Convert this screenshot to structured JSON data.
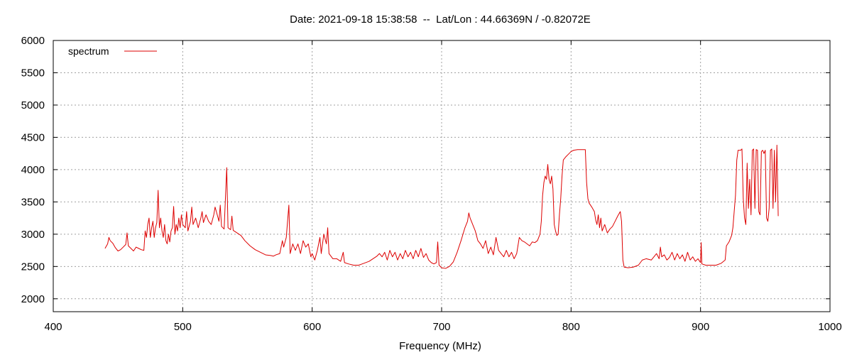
{
  "chart_data": {
    "type": "line",
    "title": "Date: 2021-09-18 15:38:58  --  Lat/Lon : 44.66369N / -0.82072E",
    "xlabel": "Frequency (MHz)",
    "ylabel": "",
    "xlim": [
      400,
      1000
    ],
    "ylim": [
      1800,
      6000
    ],
    "x_ticks": [
      400,
      500,
      600,
      700,
      800,
      900,
      1000
    ],
    "y_ticks": [
      2000,
      2500,
      3000,
      3500,
      4000,
      4500,
      5000,
      5500,
      6000
    ],
    "grid": true,
    "legend_position": "top-left",
    "colors": {
      "series": "#dd0000",
      "grid": "#a0a0a0",
      "axis": "#000000"
    },
    "series": [
      {
        "name": "spectrum",
        "points": [
          [
            440,
            2780
          ],
          [
            442,
            2850
          ],
          [
            443,
            2950
          ],
          [
            444,
            2900
          ],
          [
            446,
            2860
          ],
          [
            448,
            2790
          ],
          [
            450,
            2740
          ],
          [
            452,
            2760
          ],
          [
            454,
            2800
          ],
          [
            456,
            2840
          ],
          [
            457,
            3020
          ],
          [
            458,
            2820
          ],
          [
            460,
            2780
          ],
          [
            462,
            2740
          ],
          [
            464,
            2800
          ],
          [
            466,
            2780
          ],
          [
            468,
            2760
          ],
          [
            470,
            2750
          ],
          [
            471,
            3050
          ],
          [
            472,
            2950
          ],
          [
            473,
            3150
          ],
          [
            474,
            3250
          ],
          [
            475,
            2950
          ],
          [
            476,
            3100
          ],
          [
            477,
            3200
          ],
          [
            478,
            2950
          ],
          [
            479,
            3100
          ],
          [
            480,
            3180
          ],
          [
            481,
            3680
          ],
          [
            482,
            3100
          ],
          [
            483,
            3250
          ],
          [
            484,
            3050
          ],
          [
            485,
            2950
          ],
          [
            486,
            3150
          ],
          [
            487,
            2900
          ],
          [
            488,
            2850
          ],
          [
            489,
            3000
          ],
          [
            490,
            2880
          ],
          [
            491,
            3050
          ],
          [
            492,
            3100
          ],
          [
            493,
            3430
          ],
          [
            494,
            3000
          ],
          [
            495,
            3150
          ],
          [
            496,
            3050
          ],
          [
            497,
            3250
          ],
          [
            498,
            3100
          ],
          [
            499,
            3300
          ],
          [
            500,
            3150
          ],
          [
            502,
            3100
          ],
          [
            503,
            3350
          ],
          [
            504,
            3050
          ],
          [
            506,
            3200
          ],
          [
            507,
            3420
          ],
          [
            508,
            3150
          ],
          [
            510,
            3250
          ],
          [
            512,
            3100
          ],
          [
            514,
            3250
          ],
          [
            515,
            3350
          ],
          [
            516,
            3180
          ],
          [
            518,
            3300
          ],
          [
            520,
            3200
          ],
          [
            522,
            3150
          ],
          [
            524,
            3300
          ],
          [
            525,
            3420
          ],
          [
            526,
            3350
          ],
          [
            528,
            3200
          ],
          [
            529,
            3450
          ],
          [
            530,
            3120
          ],
          [
            532,
            3080
          ],
          [
            534,
            4030
          ],
          [
            535,
            3100
          ],
          [
            537,
            3070
          ],
          [
            538,
            3280
          ],
          [
            539,
            3060
          ],
          [
            542,
            3020
          ],
          [
            545,
            2980
          ],
          [
            548,
            2900
          ],
          [
            552,
            2820
          ],
          [
            556,
            2760
          ],
          [
            560,
            2720
          ],
          [
            564,
            2680
          ],
          [
            568,
            2670
          ],
          [
            570,
            2660
          ],
          [
            572,
            2680
          ],
          [
            575,
            2700
          ],
          [
            577,
            2900
          ],
          [
            578,
            2800
          ],
          [
            580,
            2950
          ],
          [
            582,
            3450
          ],
          [
            583,
            2700
          ],
          [
            585,
            2850
          ],
          [
            587,
            2750
          ],
          [
            589,
            2850
          ],
          [
            591,
            2700
          ],
          [
            593,
            2900
          ],
          [
            595,
            2800
          ],
          [
            597,
            2850
          ],
          [
            599,
            2650
          ],
          [
            600,
            2700
          ],
          [
            602,
            2600
          ],
          [
            604,
            2750
          ],
          [
            606,
            2950
          ],
          [
            607,
            2700
          ],
          [
            609,
            3000
          ],
          [
            611,
            2850
          ],
          [
            612,
            3100
          ],
          [
            613,
            2700
          ],
          [
            616,
            2620
          ],
          [
            619,
            2620
          ],
          [
            622,
            2580
          ],
          [
            624,
            2720
          ],
          [
            625,
            2560
          ],
          [
            628,
            2540
          ],
          [
            632,
            2520
          ],
          [
            636,
            2520
          ],
          [
            640,
            2550
          ],
          [
            644,
            2580
          ],
          [
            647,
            2620
          ],
          [
            650,
            2660
          ],
          [
            652,
            2700
          ],
          [
            654,
            2650
          ],
          [
            656,
            2720
          ],
          [
            658,
            2600
          ],
          [
            660,
            2750
          ],
          [
            662,
            2650
          ],
          [
            664,
            2720
          ],
          [
            666,
            2600
          ],
          [
            668,
            2700
          ],
          [
            670,
            2620
          ],
          [
            672,
            2750
          ],
          [
            674,
            2650
          ],
          [
            676,
            2720
          ],
          [
            678,
            2620
          ],
          [
            680,
            2750
          ],
          [
            682,
            2650
          ],
          [
            684,
            2780
          ],
          [
            686,
            2640
          ],
          [
            688,
            2700
          ],
          [
            690,
            2600
          ],
          [
            692,
            2560
          ],
          [
            694,
            2540
          ],
          [
            696,
            2560
          ],
          [
            697,
            2880
          ],
          [
            698,
            2520
          ],
          [
            700,
            2480
          ],
          [
            703,
            2470
          ],
          [
            706,
            2500
          ],
          [
            709,
            2570
          ],
          [
            712,
            2720
          ],
          [
            715,
            2900
          ],
          [
            718,
            3100
          ],
          [
            720,
            3200
          ],
          [
            721,
            3330
          ],
          [
            722,
            3250
          ],
          [
            724,
            3150
          ],
          [
            726,
            3050
          ],
          [
            728,
            2900
          ],
          [
            730,
            2850
          ],
          [
            732,
            2780
          ],
          [
            734,
            2900
          ],
          [
            736,
            2700
          ],
          [
            738,
            2800
          ],
          [
            740,
            2680
          ],
          [
            742,
            2950
          ],
          [
            744,
            2750
          ],
          [
            746,
            2700
          ],
          [
            748,
            2650
          ],
          [
            750,
            2750
          ],
          [
            752,
            2650
          ],
          [
            754,
            2720
          ],
          [
            756,
            2620
          ],
          [
            758,
            2700
          ],
          [
            760,
            2950
          ],
          [
            762,
            2900
          ],
          [
            764,
            2880
          ],
          [
            766,
            2850
          ],
          [
            768,
            2820
          ],
          [
            770,
            2880
          ],
          [
            772,
            2870
          ],
          [
            774,
            2900
          ],
          [
            775,
            2950
          ],
          [
            776,
            3000
          ],
          [
            777,
            3200
          ],
          [
            778,
            3600
          ],
          [
            779,
            3800
          ],
          [
            780,
            3900
          ],
          [
            781,
            3850
          ],
          [
            782,
            4080
          ],
          [
            783,
            3850
          ],
          [
            784,
            3780
          ],
          [
            785,
            3900
          ],
          [
            786,
            3700
          ],
          [
            787,
            3150
          ],
          [
            788,
            3050
          ],
          [
            789,
            2980
          ],
          [
            790,
            3000
          ],
          [
            791,
            3300
          ],
          [
            792,
            3550
          ],
          [
            793,
            3900
          ],
          [
            794,
            4150
          ],
          [
            796,
            4200
          ],
          [
            798,
            4240
          ],
          [
            800,
            4280
          ],
          [
            802,
            4300
          ],
          [
            805,
            4310
          ],
          [
            808,
            4310
          ],
          [
            811,
            4310
          ],
          [
            812,
            3800
          ],
          [
            813,
            3550
          ],
          [
            814,
            3480
          ],
          [
            816,
            3420
          ],
          [
            818,
            3350
          ],
          [
            819,
            3220
          ],
          [
            820,
            3150
          ],
          [
            821,
            3300
          ],
          [
            822,
            3100
          ],
          [
            823,
            3250
          ],
          [
            824,
            3050
          ],
          [
            826,
            3150
          ],
          [
            828,
            3020
          ],
          [
            830,
            3080
          ],
          [
            832,
            3120
          ],
          [
            834,
            3200
          ],
          [
            836,
            3280
          ],
          [
            838,
            3350
          ],
          [
            839,
            3200
          ],
          [
            840,
            2600
          ],
          [
            841,
            2490
          ],
          [
            844,
            2480
          ],
          [
            848,
            2490
          ],
          [
            852,
            2520
          ],
          [
            855,
            2600
          ],
          [
            858,
            2620
          ],
          [
            862,
            2600
          ],
          [
            864,
            2650
          ],
          [
            866,
            2700
          ],
          [
            868,
            2620
          ],
          [
            869,
            2800
          ],
          [
            870,
            2650
          ],
          [
            872,
            2680
          ],
          [
            874,
            2600
          ],
          [
            876,
            2640
          ],
          [
            878,
            2720
          ],
          [
            880,
            2600
          ],
          [
            882,
            2700
          ],
          [
            884,
            2620
          ],
          [
            886,
            2680
          ],
          [
            888,
            2580
          ],
          [
            890,
            2720
          ],
          [
            892,
            2600
          ],
          [
            894,
            2650
          ],
          [
            896,
            2580
          ],
          [
            898,
            2620
          ],
          [
            900,
            2560
          ],
          [
            900.5,
            2870
          ],
          [
            901,
            2540
          ],
          [
            904,
            2520
          ],
          [
            908,
            2520
          ],
          [
            912,
            2520
          ],
          [
            916,
            2550
          ],
          [
            919,
            2600
          ],
          [
            920,
            2820
          ],
          [
            922,
            2880
          ],
          [
            924,
            2980
          ],
          [
            925,
            3100
          ],
          [
            926,
            3350
          ],
          [
            927,
            3600
          ],
          [
            928,
            4150
          ],
          [
            929,
            4300
          ],
          [
            931,
            4300
          ],
          [
            932,
            4320
          ],
          [
            933,
            3550
          ],
          [
            934,
            3250
          ],
          [
            935,
            3150
          ],
          [
            936,
            4100
          ],
          [
            937,
            3400
          ],
          [
            938,
            3850
          ],
          [
            939,
            3300
          ],
          [
            940,
            4300
          ],
          [
            941,
            4320
          ],
          [
            942,
            3400
          ],
          [
            943,
            4310
          ],
          [
            944,
            4300
          ],
          [
            945,
            3350
          ],
          [
            946,
            3300
          ],
          [
            947,
            4280
          ],
          [
            948,
            4300
          ],
          [
            949,
            4250
          ],
          [
            950,
            4300
          ],
          [
            951,
            3250
          ],
          [
            952,
            3200
          ],
          [
            953,
            3400
          ],
          [
            954,
            4300
          ],
          [
            955,
            4320
          ],
          [
            956,
            3400
          ],
          [
            957,
            4300
          ],
          [
            958,
            3500
          ],
          [
            959,
            4380
          ],
          [
            960,
            3280
          ]
        ]
      }
    ]
  }
}
